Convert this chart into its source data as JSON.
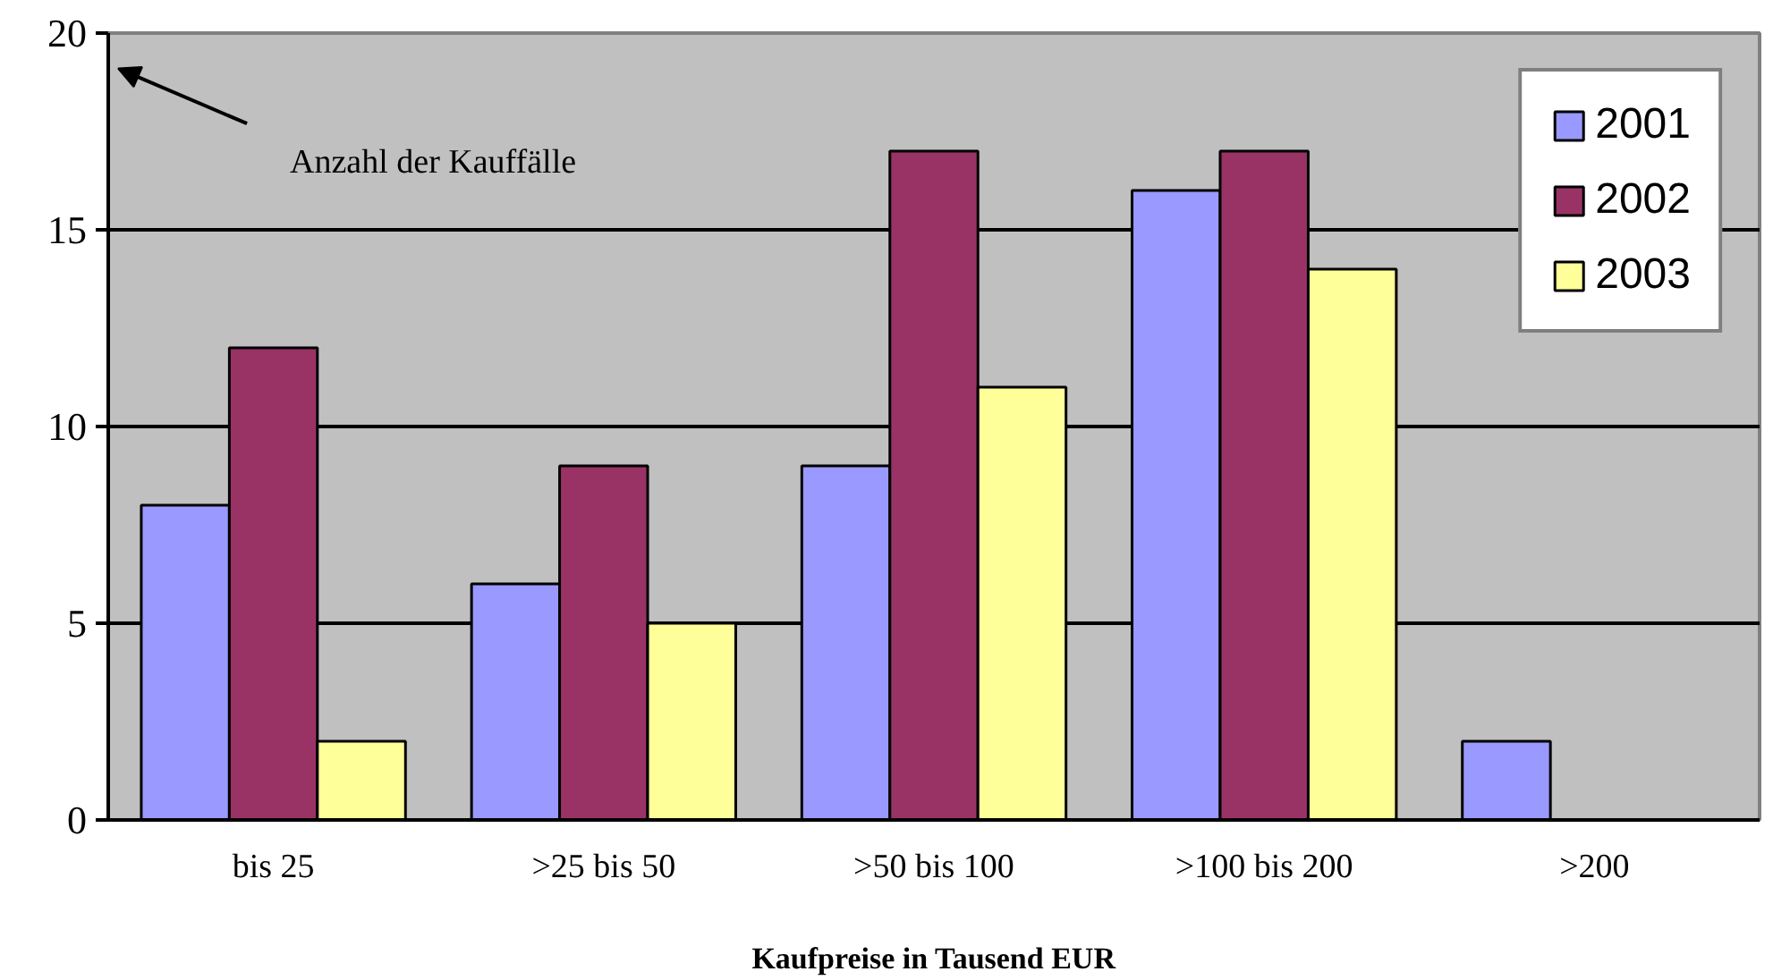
{
  "chart_data": {
    "type": "bar",
    "xlabel": "Kaufpreise in Tausend EUR",
    "annotations": [
      "Anzahl der Kauffälle"
    ],
    "categories": [
      "bis 25",
      ">25 bis 50",
      ">50 bis 100",
      ">100 bis 200",
      ">200"
    ],
    "series": [
      {
        "name": "2001",
        "color": "#9999ff",
        "values": [
          8,
          6,
          9,
          16,
          2
        ]
      },
      {
        "name": "2002",
        "color": "#993366",
        "values": [
          12,
          9,
          17,
          17,
          0
        ]
      },
      {
        "name": "2003",
        "color": "#ffff99",
        "values": [
          2,
          5,
          11,
          14,
          0
        ]
      }
    ],
    "ylim": [
      0,
      20
    ],
    "yticks": [
      0,
      5,
      10,
      15,
      20
    ],
    "grid": "y",
    "legend": "top right"
  }
}
